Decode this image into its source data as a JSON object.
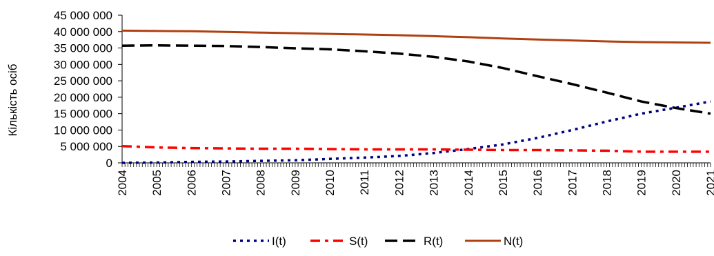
{
  "chart_data": {
    "type": "line",
    "ylabel": "Кількість осіб",
    "ylim": [
      0,
      45000000
    ],
    "yticks": [
      0,
      5000000,
      10000000,
      15000000,
      20000000,
      25000000,
      30000000,
      35000000,
      40000000,
      45000000
    ],
    "ytick_labels": [
      "0",
      "5 000 000",
      "10 000 000",
      "15 000 000",
      "20 000 000",
      "25 000 000",
      "30 000 000",
      "35 000 000",
      "40 000 000",
      "45 000 000"
    ],
    "x": [
      2004,
      2005,
      2006,
      2007,
      2008,
      2009,
      2010,
      2011,
      2012,
      2013,
      2014,
      2015,
      2016,
      2017,
      2018,
      2019,
      2020,
      2021
    ],
    "xtick_labels": [
      "2004",
      "2005",
      "2006",
      "2007",
      "2008",
      "2009",
      "2010",
      "2011",
      "2012",
      "2013",
      "2014",
      "2015",
      "2016",
      "2017",
      "2018",
      "2019",
      "2020",
      "2021"
    ],
    "grid": false,
    "legend_position": "bottom",
    "series": [
      {
        "name": "I(t)",
        "color": "#000080",
        "style": "dotted",
        "values": [
          0,
          100000,
          300000,
          400000,
          600000,
          800000,
          1200000,
          1600000,
          2100000,
          3000000,
          4200000,
          5600000,
          7600000,
          10000000,
          12600000,
          15000000,
          16800000,
          18700000
        ]
      },
      {
        "name": "S(t)",
        "color": "#ff0000",
        "style": "dash-dot",
        "values": [
          5100000,
          4700000,
          4500000,
          4400000,
          4300000,
          4300000,
          4200000,
          4100000,
          4100000,
          4100000,
          4000000,
          3900000,
          3900000,
          3800000,
          3700000,
          3400000,
          3400000,
          3400000
        ]
      },
      {
        "name": "R(t)",
        "color": "#000000",
        "style": "dashed",
        "values": [
          35700000,
          35800000,
          35700000,
          35600000,
          35300000,
          34900000,
          34600000,
          34000000,
          33300000,
          32300000,
          30900000,
          28900000,
          26400000,
          24000000,
          21400000,
          18700000,
          16700000,
          15000000
        ]
      },
      {
        "name": "N(t)",
        "color": "#b04010",
        "style": "solid",
        "values": [
          40300000,
          40200000,
          40100000,
          39900000,
          39700000,
          39500000,
          39300000,
          39100000,
          38900000,
          38600000,
          38300000,
          37900000,
          37600000,
          37300000,
          37000000,
          36800000,
          36700000,
          36600000
        ]
      }
    ]
  }
}
